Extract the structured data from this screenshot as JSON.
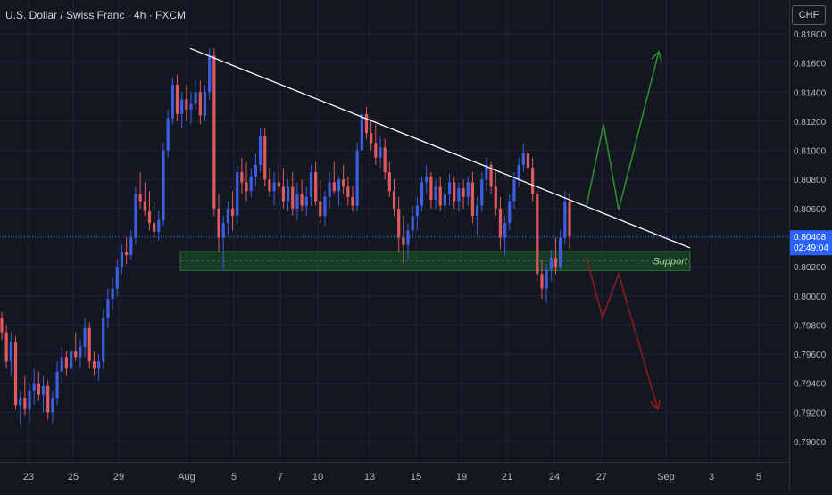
{
  "header": {
    "title": "U.S. Dollar / Swiss Franc · 4h · FXCM",
    "currency_button": "CHF"
  },
  "colors": {
    "background": "#131722",
    "grid": "#1f2433",
    "bull": "#3d5ee0",
    "bear": "#e0595c",
    "trendline": "#ffffff",
    "support_fill": "#1e5a2a",
    "support_border": "#4caf50",
    "up_arrow": "#2b8a2e",
    "down_arrow": "#8b1c1c",
    "price_tag": "#2962ff",
    "axis_text": "#b2b5be"
  },
  "chart_data": {
    "type": "candlestick",
    "title": "U.S. Dollar / Swiss Franc · 4h · FXCM",
    "ylim": [
      0.7888,
      0.8175
    ],
    "y_ticks": [
      "0.81800",
      "0.81600",
      "0.81400",
      "0.81200",
      "0.81000",
      "0.80800",
      "0.80600",
      "0.80400",
      "0.80200",
      "0.80000",
      "0.79800",
      "0.79600",
      "0.79400",
      "0.79200",
      "0.79000"
    ],
    "x_ticks": [
      "23",
      "25",
      "29",
      "Aug",
      "5",
      "7",
      "10",
      "13",
      "15",
      "19",
      "21",
      "24",
      "27",
      "Sep",
      "3",
      "5"
    ],
    "grid": true,
    "current_price": {
      "value": "0.80408",
      "timer": "02:49:04"
    },
    "support_zone": {
      "label": "Support",
      "low": 0.8018,
      "high": 0.803
    },
    "trendline": {
      "start_price": 0.817,
      "end_price": 0.8033
    },
    "projections": {
      "up": [
        0.8062,
        0.8118,
        0.8059,
        0.8168
      ],
      "down": [
        0.8026,
        0.7985,
        0.8015,
        0.7922
      ]
    },
    "candles": [
      [
        0.7985,
        0.7989,
        0.797,
        0.7975
      ],
      [
        0.7975,
        0.798,
        0.795,
        0.7955
      ],
      [
        0.7955,
        0.7975,
        0.7945,
        0.7968
      ],
      [
        0.7968,
        0.7972,
        0.7922,
        0.7925
      ],
      [
        0.7925,
        0.7935,
        0.7912,
        0.793
      ],
      [
        0.793,
        0.7945,
        0.7918,
        0.7922
      ],
      [
        0.7922,
        0.794,
        0.7912,
        0.7935
      ],
      [
        0.7935,
        0.795,
        0.7925,
        0.794
      ],
      [
        0.794,
        0.7948,
        0.7928,
        0.7932
      ],
      [
        0.7932,
        0.7945,
        0.792,
        0.7938
      ],
      [
        0.7938,
        0.7942,
        0.7915,
        0.792
      ],
      [
        0.792,
        0.7935,
        0.7912,
        0.793
      ],
      [
        0.793,
        0.7955,
        0.7925,
        0.7948
      ],
      [
        0.7948,
        0.7965,
        0.794,
        0.7958
      ],
      [
        0.7958,
        0.7962,
        0.7945,
        0.795
      ],
      [
        0.795,
        0.7968,
        0.7946,
        0.7962
      ],
      [
        0.7962,
        0.7975,
        0.7955,
        0.7958
      ],
      [
        0.7958,
        0.797,
        0.795,
        0.7965
      ],
      [
        0.7965,
        0.7985,
        0.7958,
        0.7978
      ],
      [
        0.7978,
        0.7982,
        0.795,
        0.7955
      ],
      [
        0.7955,
        0.7962,
        0.7945,
        0.795
      ],
      [
        0.795,
        0.796,
        0.7942,
        0.7955
      ],
      [
        0.7955,
        0.799,
        0.795,
        0.7985
      ],
      [
        0.7985,
        0.8005,
        0.7978,
        0.7998
      ],
      [
        0.7998,
        0.8012,
        0.799,
        0.8005
      ],
      [
        0.8005,
        0.8025,
        0.8,
        0.802
      ],
      [
        0.802,
        0.8035,
        0.8015,
        0.803
      ],
      [
        0.803,
        0.804,
        0.8022,
        0.8028
      ],
      [
        0.8028,
        0.8045,
        0.8025,
        0.804
      ],
      [
        0.804,
        0.8075,
        0.8035,
        0.807
      ],
      [
        0.807,
        0.8085,
        0.806,
        0.8065
      ],
      [
        0.8065,
        0.8078,
        0.8055,
        0.8058
      ],
      [
        0.8058,
        0.8072,
        0.8045,
        0.805
      ],
      [
        0.805,
        0.8065,
        0.804,
        0.8044
      ],
      [
        0.8044,
        0.8058,
        0.8038,
        0.8052
      ],
      [
        0.8052,
        0.8105,
        0.8048,
        0.81
      ],
      [
        0.81,
        0.8128,
        0.8095,
        0.8122
      ],
      [
        0.8122,
        0.815,
        0.8118,
        0.8145
      ],
      [
        0.8145,
        0.8152,
        0.812,
        0.8125
      ],
      [
        0.8125,
        0.814,
        0.8115,
        0.8135
      ],
      [
        0.8135,
        0.8145,
        0.812,
        0.8128
      ],
      [
        0.8128,
        0.814,
        0.8118,
        0.8132
      ],
      [
        0.8132,
        0.8148,
        0.8128,
        0.814
      ],
      [
        0.814,
        0.8148,
        0.8118,
        0.8124
      ],
      [
        0.8124,
        0.8145,
        0.812,
        0.814
      ],
      [
        0.814,
        0.817,
        0.8135,
        0.8165
      ],
      [
        0.8165,
        0.817,
        0.8055,
        0.806
      ],
      [
        0.806,
        0.807,
        0.803,
        0.804
      ],
      [
        0.804,
        0.8055,
        0.8018,
        0.805
      ],
      [
        0.805,
        0.8065,
        0.8042,
        0.806
      ],
      [
        0.806,
        0.8072,
        0.8045,
        0.8055
      ],
      [
        0.8055,
        0.809,
        0.805,
        0.8085
      ],
      [
        0.8085,
        0.8095,
        0.807,
        0.8078
      ],
      [
        0.8078,
        0.8092,
        0.8065,
        0.8072
      ],
      [
        0.8072,
        0.8088,
        0.8068,
        0.8082
      ],
      [
        0.8082,
        0.8098,
        0.8075,
        0.809
      ],
      [
        0.809,
        0.8115,
        0.8085,
        0.811
      ],
      [
        0.811,
        0.8115,
        0.8075,
        0.808
      ],
      [
        0.808,
        0.8088,
        0.8068,
        0.8072
      ],
      [
        0.8072,
        0.8085,
        0.8062,
        0.8078
      ],
      [
        0.8078,
        0.809,
        0.807,
        0.8075
      ],
      [
        0.8075,
        0.8088,
        0.806,
        0.8065
      ],
      [
        0.8065,
        0.808,
        0.8058,
        0.8075
      ],
      [
        0.8075,
        0.8085,
        0.8055,
        0.806
      ],
      [
        0.806,
        0.8078,
        0.8052,
        0.807
      ],
      [
        0.807,
        0.808,
        0.8058,
        0.8062
      ],
      [
        0.8062,
        0.8075,
        0.8055,
        0.8068
      ],
      [
        0.8068,
        0.809,
        0.8062,
        0.8085
      ],
      [
        0.8085,
        0.8092,
        0.8062,
        0.8065
      ],
      [
        0.8065,
        0.808,
        0.805,
        0.8055
      ],
      [
        0.8055,
        0.8072,
        0.8048,
        0.8068
      ],
      [
        0.8068,
        0.8085,
        0.806,
        0.8078
      ],
      [
        0.8078,
        0.8092,
        0.807,
        0.8072
      ],
      [
        0.8072,
        0.8082,
        0.8062,
        0.808
      ],
      [
        0.808,
        0.809,
        0.807,
        0.8075
      ],
      [
        0.8075,
        0.8082,
        0.8062,
        0.8068
      ],
      [
        0.8068,
        0.8076,
        0.8058,
        0.8062
      ],
      [
        0.8062,
        0.8105,
        0.8058,
        0.81
      ],
      [
        0.81,
        0.813,
        0.8095,
        0.8125
      ],
      [
        0.8125,
        0.813,
        0.8108,
        0.8112
      ],
      [
        0.8112,
        0.8122,
        0.81,
        0.8105
      ],
      [
        0.8105,
        0.8118,
        0.809,
        0.8095
      ],
      [
        0.8095,
        0.811,
        0.8088,
        0.8102
      ],
      [
        0.8102,
        0.8108,
        0.808,
        0.8085
      ],
      [
        0.8085,
        0.8092,
        0.8068,
        0.8072
      ],
      [
        0.8072,
        0.808,
        0.8055,
        0.806
      ],
      [
        0.806,
        0.8068,
        0.803,
        0.804
      ],
      [
        0.804,
        0.8055,
        0.8022,
        0.8035
      ],
      [
        0.8035,
        0.805,
        0.8025,
        0.8045
      ],
      [
        0.8045,
        0.8062,
        0.804,
        0.8055
      ],
      [
        0.8055,
        0.8068,
        0.8045,
        0.8062
      ],
      [
        0.8062,
        0.8082,
        0.8058,
        0.8078
      ],
      [
        0.8078,
        0.809,
        0.807,
        0.8082
      ],
      [
        0.8082,
        0.8085,
        0.806,
        0.8066
      ],
      [
        0.8066,
        0.808,
        0.806,
        0.8075
      ],
      [
        0.8075,
        0.8082,
        0.8058,
        0.8062
      ],
      [
        0.8062,
        0.8075,
        0.8052,
        0.807
      ],
      [
        0.807,
        0.8084,
        0.8062,
        0.8078
      ],
      [
        0.8078,
        0.8082,
        0.806,
        0.8065
      ],
      [
        0.8065,
        0.8078,
        0.8058,
        0.8074
      ],
      [
        0.8074,
        0.808,
        0.806,
        0.8068
      ],
      [
        0.8068,
        0.8082,
        0.8062,
        0.8078
      ],
      [
        0.8078,
        0.8085,
        0.805,
        0.8055
      ],
      [
        0.8055,
        0.8068,
        0.8042,
        0.8062
      ],
      [
        0.8062,
        0.8085,
        0.8058,
        0.808
      ],
      [
        0.808,
        0.8095,
        0.8072,
        0.809
      ],
      [
        0.809,
        0.8092,
        0.807,
        0.8075
      ],
      [
        0.8075,
        0.8085,
        0.8055,
        0.806
      ],
      [
        0.806,
        0.8068,
        0.8032,
        0.804
      ],
      [
        0.804,
        0.8055,
        0.8028,
        0.805
      ],
      [
        0.805,
        0.807,
        0.8045,
        0.8065
      ],
      [
        0.8065,
        0.8085,
        0.806,
        0.808
      ],
      [
        0.808,
        0.8095,
        0.8075,
        0.809
      ],
      [
        0.809,
        0.8105,
        0.8085,
        0.8098
      ],
      [
        0.8098,
        0.8105,
        0.8082,
        0.8088
      ],
      [
        0.8088,
        0.8095,
        0.8065,
        0.807
      ],
      [
        0.807,
        0.8072,
        0.801,
        0.8015
      ],
      [
        0.8015,
        0.8025,
        0.7998,
        0.8005
      ],
      [
        0.8005,
        0.8022,
        0.7995,
        0.8018
      ],
      [
        0.8018,
        0.8032,
        0.801,
        0.8026
      ],
      [
        0.8026,
        0.804,
        0.8015,
        0.802
      ],
      [
        0.802,
        0.8045,
        0.8018,
        0.804
      ],
      [
        0.804,
        0.8072,
        0.8035,
        0.8065
      ],
      [
        0.8065,
        0.807,
        0.8032,
        0.8041
      ]
    ]
  }
}
